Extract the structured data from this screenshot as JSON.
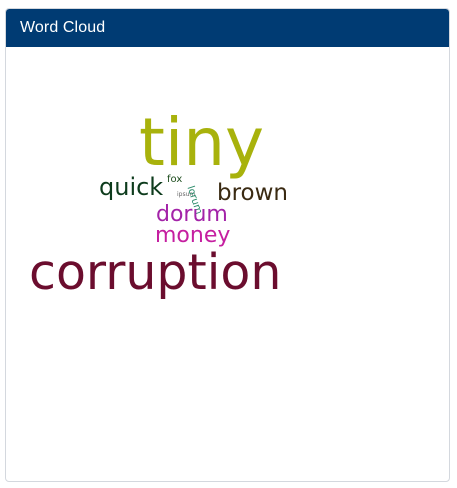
{
  "panel": {
    "title": "Word Cloud",
    "header_color": "#003b73"
  },
  "words": [
    {
      "text": "tiny",
      "color": "#a8b20c"
    },
    {
      "text": "quick",
      "color": "#0d3b1c"
    },
    {
      "text": "fox",
      "color": "#1e4d1e"
    },
    {
      "text": "ipsum",
      "color": "#666666"
    },
    {
      "text": "lorum",
      "color": "#2a8a6a"
    },
    {
      "text": "brown",
      "color": "#3a2a12"
    },
    {
      "text": "dorum",
      "color": "#a323a8"
    },
    {
      "text": "money",
      "color": "#c51fa0"
    },
    {
      "text": "corruption",
      "color": "#6b0d2e"
    }
  ]
}
